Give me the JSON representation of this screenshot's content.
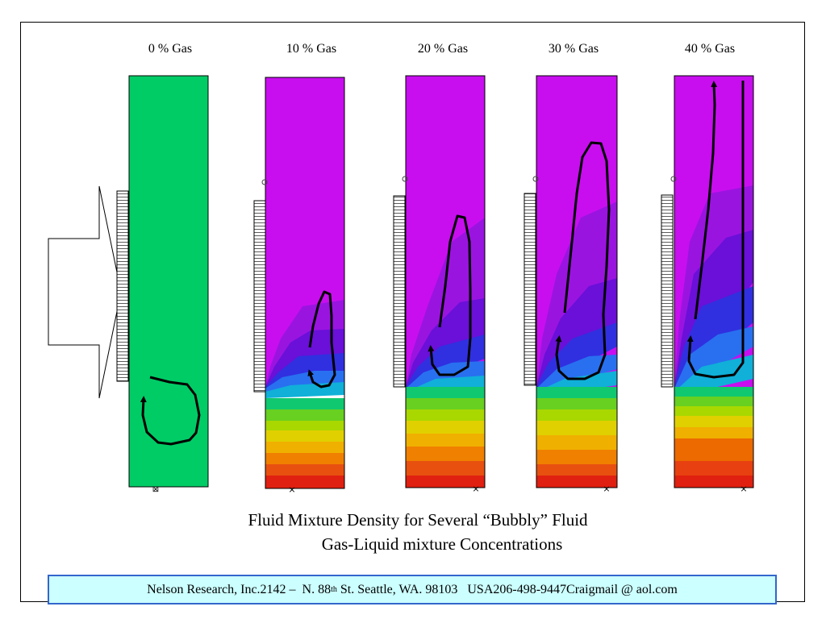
{
  "columns": [
    {
      "label": "0 % Gas",
      "gas_fraction": 0
    },
    {
      "label": "10 % Gas",
      "gas_fraction": 10
    },
    {
      "label": "20 % Gas",
      "gas_fraction": 20
    },
    {
      "label": "30 % Gas",
      "gas_fraction": 30
    },
    {
      "label": "40 % Gas",
      "gas_fraction": 40
    }
  ],
  "caption": {
    "line1": "Fluid Mixture Density for Several “Bubbly” Fluid",
    "line2": "Gas-Liquid mixture Concentrations"
  },
  "footer": {
    "company": "Nelson Research, Inc.",
    "address_prefix": "2142 –  N. 88",
    "address_sup": "th",
    "address_suffix": " St. Seattle, WA. 98103   USA",
    "phone": "206-498-9447",
    "email": "Craigmail @ aol.com"
  },
  "colors": {
    "liquid_green": "#00cc66",
    "gas_magenta": "#cc00ee",
    "flow_line": "#000000",
    "footer_fill": "#ccffff",
    "footer_border": "#3366cc"
  }
}
